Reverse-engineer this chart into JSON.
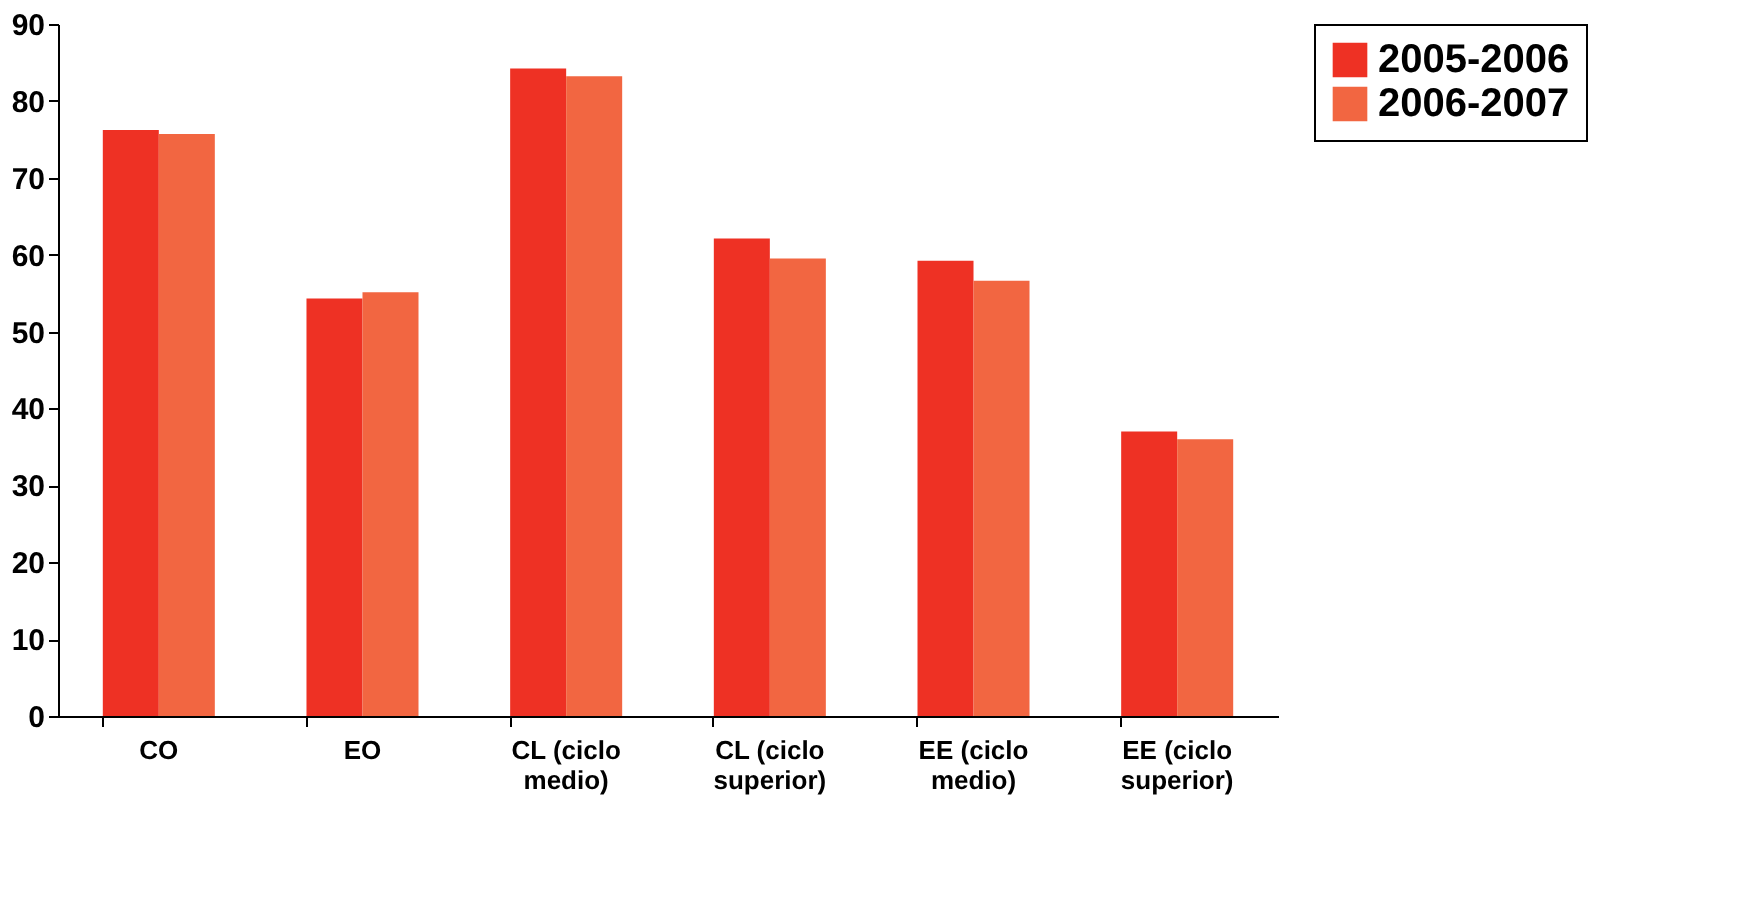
{
  "chart_data": {
    "type": "bar",
    "categories": [
      "CO",
      "EO",
      "CL (ciclo medio)",
      "CL (ciclo superior)",
      "EE (ciclo medio)",
      "EE (ciclo superior)"
    ],
    "series": [
      {
        "name": "2005-2006",
        "color": "#ee3124",
        "values": [
          76.2,
          54.3,
          84.2,
          62.1,
          59.2,
          37.0
        ]
      },
      {
        "name": "2006-2007",
        "color": "#f26641",
        "values": [
          75.7,
          55.1,
          83.2,
          59.5,
          56.6,
          36.0
        ]
      }
    ],
    "ylim": [
      0,
      90
    ],
    "yticks": [
      0,
      10,
      20,
      30,
      40,
      50,
      60,
      70,
      80,
      90
    ],
    "grid": false,
    "legend": "right"
  }
}
